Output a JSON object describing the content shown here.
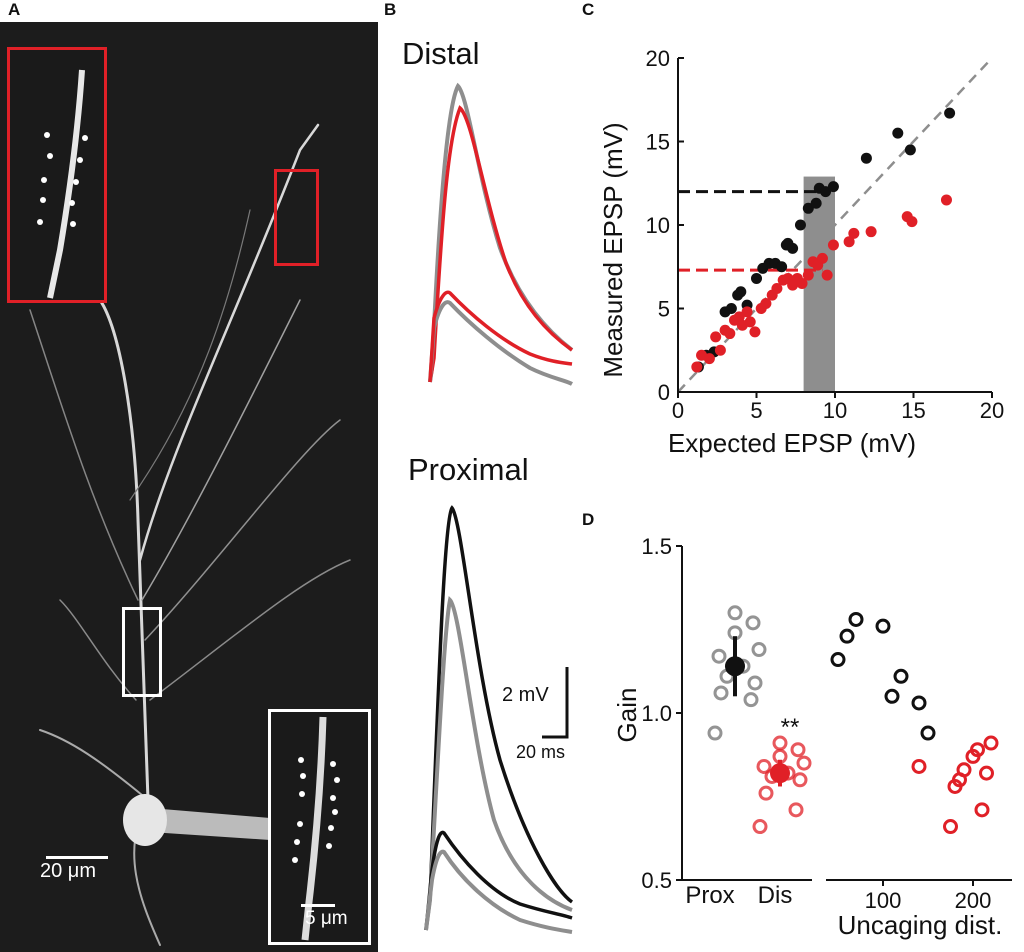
{
  "panels": {
    "a": "A",
    "b": "B",
    "c": "C",
    "d": "D"
  },
  "panelA": {
    "scale_main": "20 μm",
    "scale_inset": "5 μm"
  },
  "panelB": {
    "distal_title": "Distal",
    "proximal_title": "Proximal",
    "scale_mv": "2 mV",
    "scale_ms": "20 ms"
  },
  "chart_data": [
    {
      "panel": "C",
      "type": "scatter",
      "xlabel": "Expected EPSP (mV)",
      "ylabel": "Measured EPSP (mV)",
      "xlim": [
        0,
        20
      ],
      "ylim": [
        0,
        20
      ],
      "xticks": [
        "0",
        "5",
        "10",
        "15",
        "20"
      ],
      "yticks": [
        "0",
        "5",
        "10",
        "15",
        "20"
      ],
      "unity_line": true,
      "shaded_band_x": [
        8,
        10
      ],
      "dashed_levels": [
        {
          "y": 12,
          "color": "#111111"
        },
        {
          "y": 7.3,
          "color": "#e02027"
        }
      ],
      "series": [
        {
          "color": "#111111",
          "x": [
            1.3,
            1.8,
            2.3,
            3.0,
            3.4,
            3.8,
            4.0,
            4.4,
            5.0,
            5.4,
            5.8,
            6.2,
            6.6,
            6.9,
            7.0,
            7.3,
            7.8,
            8.3,
            8.8,
            9.0,
            9.4,
            9.9,
            12.0,
            14.0,
            14.8,
            17.3
          ],
          "y": [
            1.5,
            2.2,
            2.4,
            4.8,
            5.0,
            5.8,
            6.0,
            5.2,
            6.8,
            7.4,
            7.7,
            7.7,
            7.5,
            8.8,
            8.9,
            8.6,
            10.0,
            11.0,
            11.3,
            12.2,
            12.0,
            12.3,
            14.0,
            15.5,
            14.5,
            16.7
          ]
        },
        {
          "color": "#e02027",
          "x": [
            1.2,
            1.5,
            2.0,
            2.4,
            2.7,
            3.0,
            3.3,
            3.6,
            3.9,
            4.1,
            4.4,
            4.6,
            4.9,
            5.3,
            5.6,
            6.0,
            6.3,
            6.7,
            7.0,
            7.3,
            7.6,
            7.9,
            8.3,
            8.6,
            8.9,
            9.2,
            9.5,
            9.9,
            10.9,
            11.2,
            12.3,
            14.6,
            14.9,
            17.1
          ],
          "y": [
            1.5,
            2.2,
            2.0,
            3.3,
            2.5,
            3.7,
            3.5,
            4.3,
            4.5,
            4.0,
            4.8,
            4.2,
            3.6,
            5.0,
            5.3,
            5.8,
            6.2,
            6.7,
            6.8,
            6.4,
            6.8,
            6.5,
            7.0,
            7.8,
            7.6,
            8.0,
            7.0,
            8.8,
            9.0,
            9.5,
            9.6,
            10.5,
            10.2,
            11.5
          ]
        }
      ]
    },
    {
      "panel": "D",
      "type": "scatter",
      "ylabel": "Gain",
      "ylim": [
        0.5,
        1.5
      ],
      "yticks": [
        "0.5",
        "1.0",
        "1.5"
      ],
      "categories": [
        "Prox",
        "Dis"
      ],
      "significance": "**",
      "groups": [
        {
          "category": "Prox",
          "color": "#888888",
          "values": [
            0.94,
            1.04,
            1.06,
            1.09,
            1.11,
            1.14,
            1.17,
            1.19,
            1.24,
            1.27,
            1.3
          ],
          "mean": 1.14,
          "err": 0.09
        },
        {
          "category": "Dis",
          "color": "#e02027",
          "values": [
            0.66,
            0.71,
            0.76,
            0.8,
            0.81,
            0.82,
            0.84,
            0.85,
            0.87,
            0.89,
            0.91
          ],
          "mean": 0.82,
          "err": 0.04
        }
      ],
      "secondary": {
        "xlabel": "Uncaging dist.",
        "xticks": [
          "100",
          "200"
        ],
        "series": [
          {
            "color": "#111111",
            "x": [
              50,
              60,
              70,
              100,
              110,
              120,
              140,
              150
            ],
            "y": [
              1.16,
              1.23,
              1.28,
              1.26,
              1.05,
              1.11,
              1.03,
              0.94
            ]
          },
          {
            "color": "#e02027",
            "x": [
              140,
              175,
              180,
              185,
              190,
              200,
              205,
              210,
              215,
              220
            ],
            "y": [
              0.84,
              0.66,
              0.78,
              0.8,
              0.83,
              0.87,
              0.89,
              0.71,
              0.82,
              0.91
            ]
          }
        ]
      }
    }
  ]
}
